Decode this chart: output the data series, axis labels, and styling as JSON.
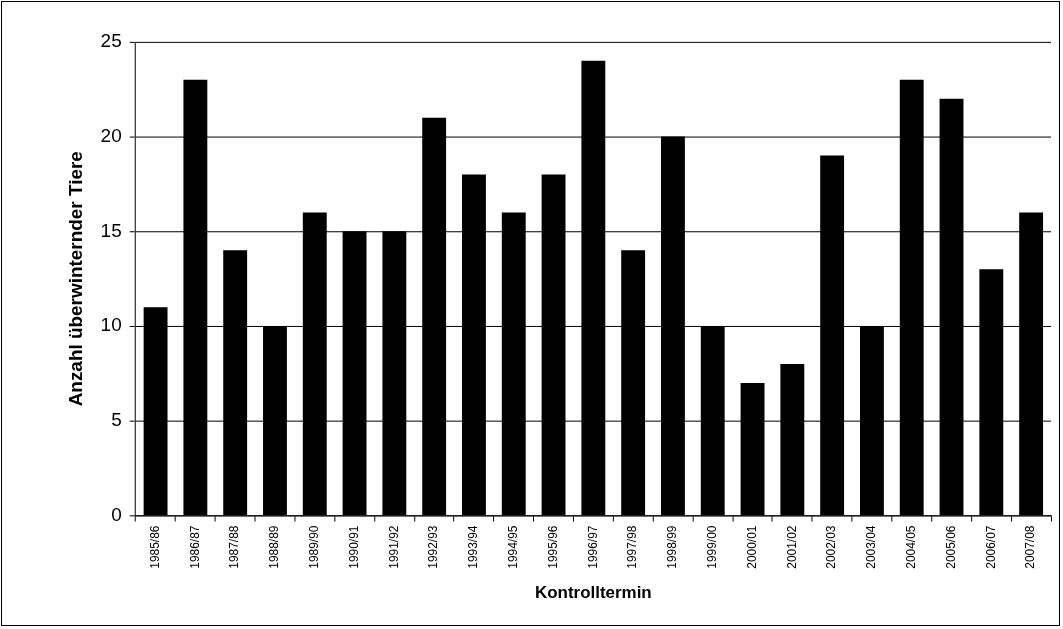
{
  "chart_data": {
    "type": "bar",
    "xlabel": "Kontrolltermin",
    "ylabel": "Anzahl überwinternder Tiere",
    "categories": [
      "1985/86",
      "1986/87",
      "1987/88",
      "1988/89",
      "1989/90",
      "1990/91",
      "1991/92",
      "1992/93",
      "1993/94",
      "1994/95",
      "1995/96",
      "1996/97",
      "1997/98",
      "1998/99",
      "1999/00",
      "2000/01",
      "2001/02",
      "2002/03",
      "2003/04",
      "2004/05",
      "2005/06",
      "2006/07",
      "2007/08"
    ],
    "values": [
      11,
      23,
      14,
      10,
      16,
      15,
      15,
      21,
      18,
      16,
      18,
      24,
      14,
      20,
      10,
      7,
      8,
      19,
      10,
      23,
      22,
      13,
      16
    ],
    "color": "#000000",
    "ylim": [
      0,
      25
    ],
    "yticks": [
      0,
      5,
      10,
      15,
      20,
      25
    ],
    "grid": "y",
    "legend": false
  }
}
